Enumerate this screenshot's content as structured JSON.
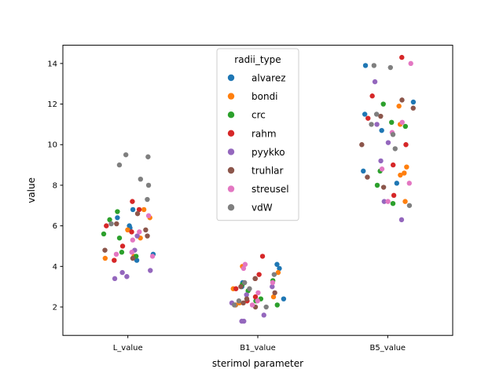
{
  "chart_data": {
    "type": "scatter",
    "subtype": "strip",
    "xlabel": "sterimol parameter",
    "ylabel": "value",
    "categories": [
      "L_value",
      "B1_value",
      "B5_value"
    ],
    "ylim": [
      0.6,
      14.9
    ],
    "yticks": [
      2,
      4,
      6,
      8,
      10,
      12,
      14
    ],
    "grid": false,
    "legend": {
      "title": "radii_type",
      "placement": "top-center"
    },
    "series": [
      {
        "name": "alvarez",
        "color": "#1f77b4",
        "values": [
          [
            6.8,
            6.4,
            5.9,
            4.6,
            4.3,
            6.0
          ],
          [
            4.1,
            3.9,
            2.1,
            2.4,
            3.2,
            3.0
          ],
          [
            12.1,
            11.5,
            10.7,
            8.7,
            13.9,
            8.1
          ]
        ]
      },
      {
        "name": "bondi",
        "color": "#ff7f0e",
        "values": [
          [
            6.4,
            6.8,
            5.4,
            4.4,
            4.5,
            5.8
          ],
          [
            4.0,
            3.7,
            2.1,
            2.5,
            2.2,
            2.9
          ],
          [
            11.9,
            11.0,
            8.9,
            8.6,
            7.2,
            8.5
          ]
        ]
      },
      {
        "name": "crc",
        "color": "#2ca02c",
        "values": [
          [
            5.6,
            5.4,
            6.3,
            4.5,
            4.7,
            6.7
          ],
          [
            3.3,
            2.8,
            2.1,
            2.4,
            3.1,
            2.3
          ],
          [
            11.1,
            12.0,
            8.0,
            10.9,
            7.1,
            8.7
          ]
        ]
      },
      {
        "name": "rahm",
        "color": "#d62728",
        "values": [
          [
            6.8,
            7.2,
            5.0,
            5.7,
            4.3,
            6.0
          ],
          [
            4.5,
            3.6,
            2.5,
            2.3,
            3.4,
            2.9
          ],
          [
            14.3,
            12.4,
            11.3,
            10.0,
            9.0,
            7.5
          ]
        ]
      },
      {
        "name": "pyykko",
        "color": "#9467bd",
        "values": [
          [
            3.8,
            3.4,
            3.5,
            3.7,
            4.8,
            5.5
          ],
          [
            1.3,
            1.3,
            1.6,
            2.2,
            2.6,
            3.0
          ],
          [
            6.3,
            7.2,
            9.2,
            10.1,
            13.1,
            11.0
          ]
        ]
      },
      {
        "name": "truhlar",
        "color": "#8c564b",
        "values": [
          [
            5.8,
            6.1,
            4.4,
            4.8,
            5.5,
            6.6
          ],
          [
            3.4,
            3.0,
            2.7,
            2.4,
            2.2,
            2.0
          ],
          [
            12.2,
            11.4,
            10.0,
            7.9,
            8.4,
            11.8
          ]
        ]
      },
      {
        "name": "streusel",
        "color": "#e377c2",
        "values": [
          [
            4.6,
            4.7,
            5.3,
            6.5,
            5.7,
            4.5
          ],
          [
            4.1,
            3.9,
            2.3,
            2.1,
            3.2,
            2.7
          ],
          [
            14.0,
            11.1,
            7.2,
            8.1,
            8.8,
            10.6
          ]
        ]
      },
      {
        "name": "vdW",
        "color": "#7f7f7f",
        "values": [
          [
            9.4,
            9.5,
            9.0,
            8.3,
            8.0,
            7.3,
            6.1
          ],
          [
            3.2,
            2.9,
            2.1,
            2.3,
            2.0,
            3.6
          ],
          [
            13.9,
            13.8,
            11.5,
            11.0,
            10.5,
            9.8,
            7.0
          ]
        ]
      }
    ]
  }
}
